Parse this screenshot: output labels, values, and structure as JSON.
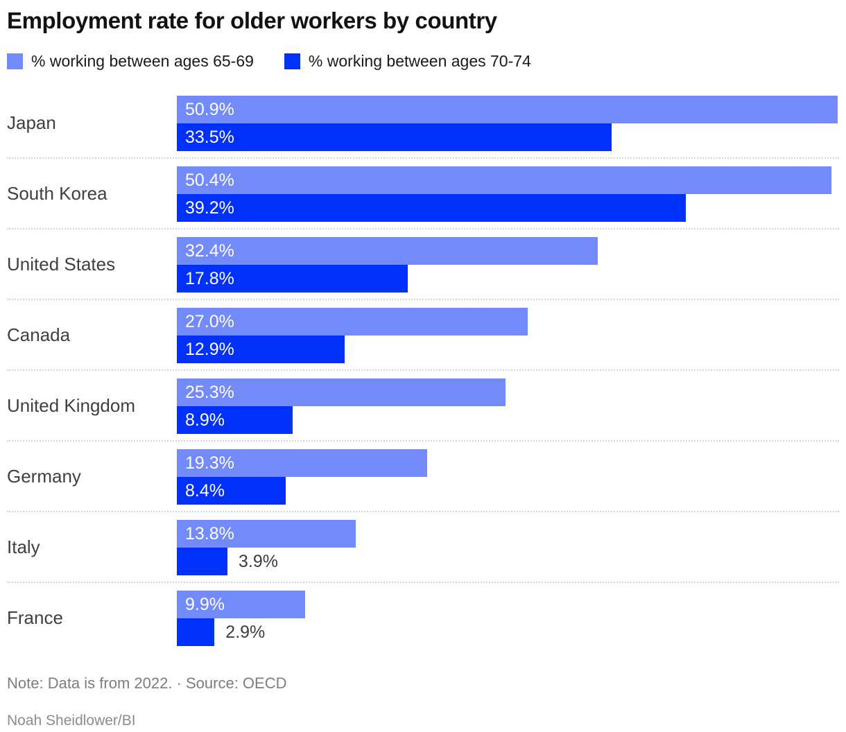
{
  "header": {
    "title": "Employment rate for older workers by country"
  },
  "legend": {
    "items": [
      {
        "label": "% working between ages 65-69",
        "color": "#738AFA"
      },
      {
        "label": "% working between ages 70-74",
        "color": "#0130FA"
      }
    ]
  },
  "chart_data": {
    "type": "bar",
    "orientation": "horizontal",
    "title": "Employment rate for older workers by country",
    "categories": [
      "Japan",
      "South Korea",
      "United States",
      "Canada",
      "United Kingdom",
      "Germany",
      "Italy",
      "France"
    ],
    "series": [
      {
        "name": "% working between ages 65-69",
        "color": "#738AFA",
        "values": [
          50.9,
          50.4,
          32.4,
          27.0,
          25.3,
          19.3,
          13.8,
          9.9
        ]
      },
      {
        "name": "% working between ages 70-74",
        "color": "#0130FA",
        "values": [
          33.5,
          39.2,
          17.8,
          12.9,
          8.9,
          8.4,
          3.9,
          2.9
        ]
      }
    ],
    "value_suffix": "%",
    "value_decimals": 1,
    "xlim": [
      0,
      51.0
    ],
    "outside_label_threshold": 5,
    "grid": false,
    "legend_position": "top"
  },
  "footer": {
    "note": "Note: Data is from 2022. · Source: OECD",
    "credit": "Noah Sheidlower/BI"
  }
}
